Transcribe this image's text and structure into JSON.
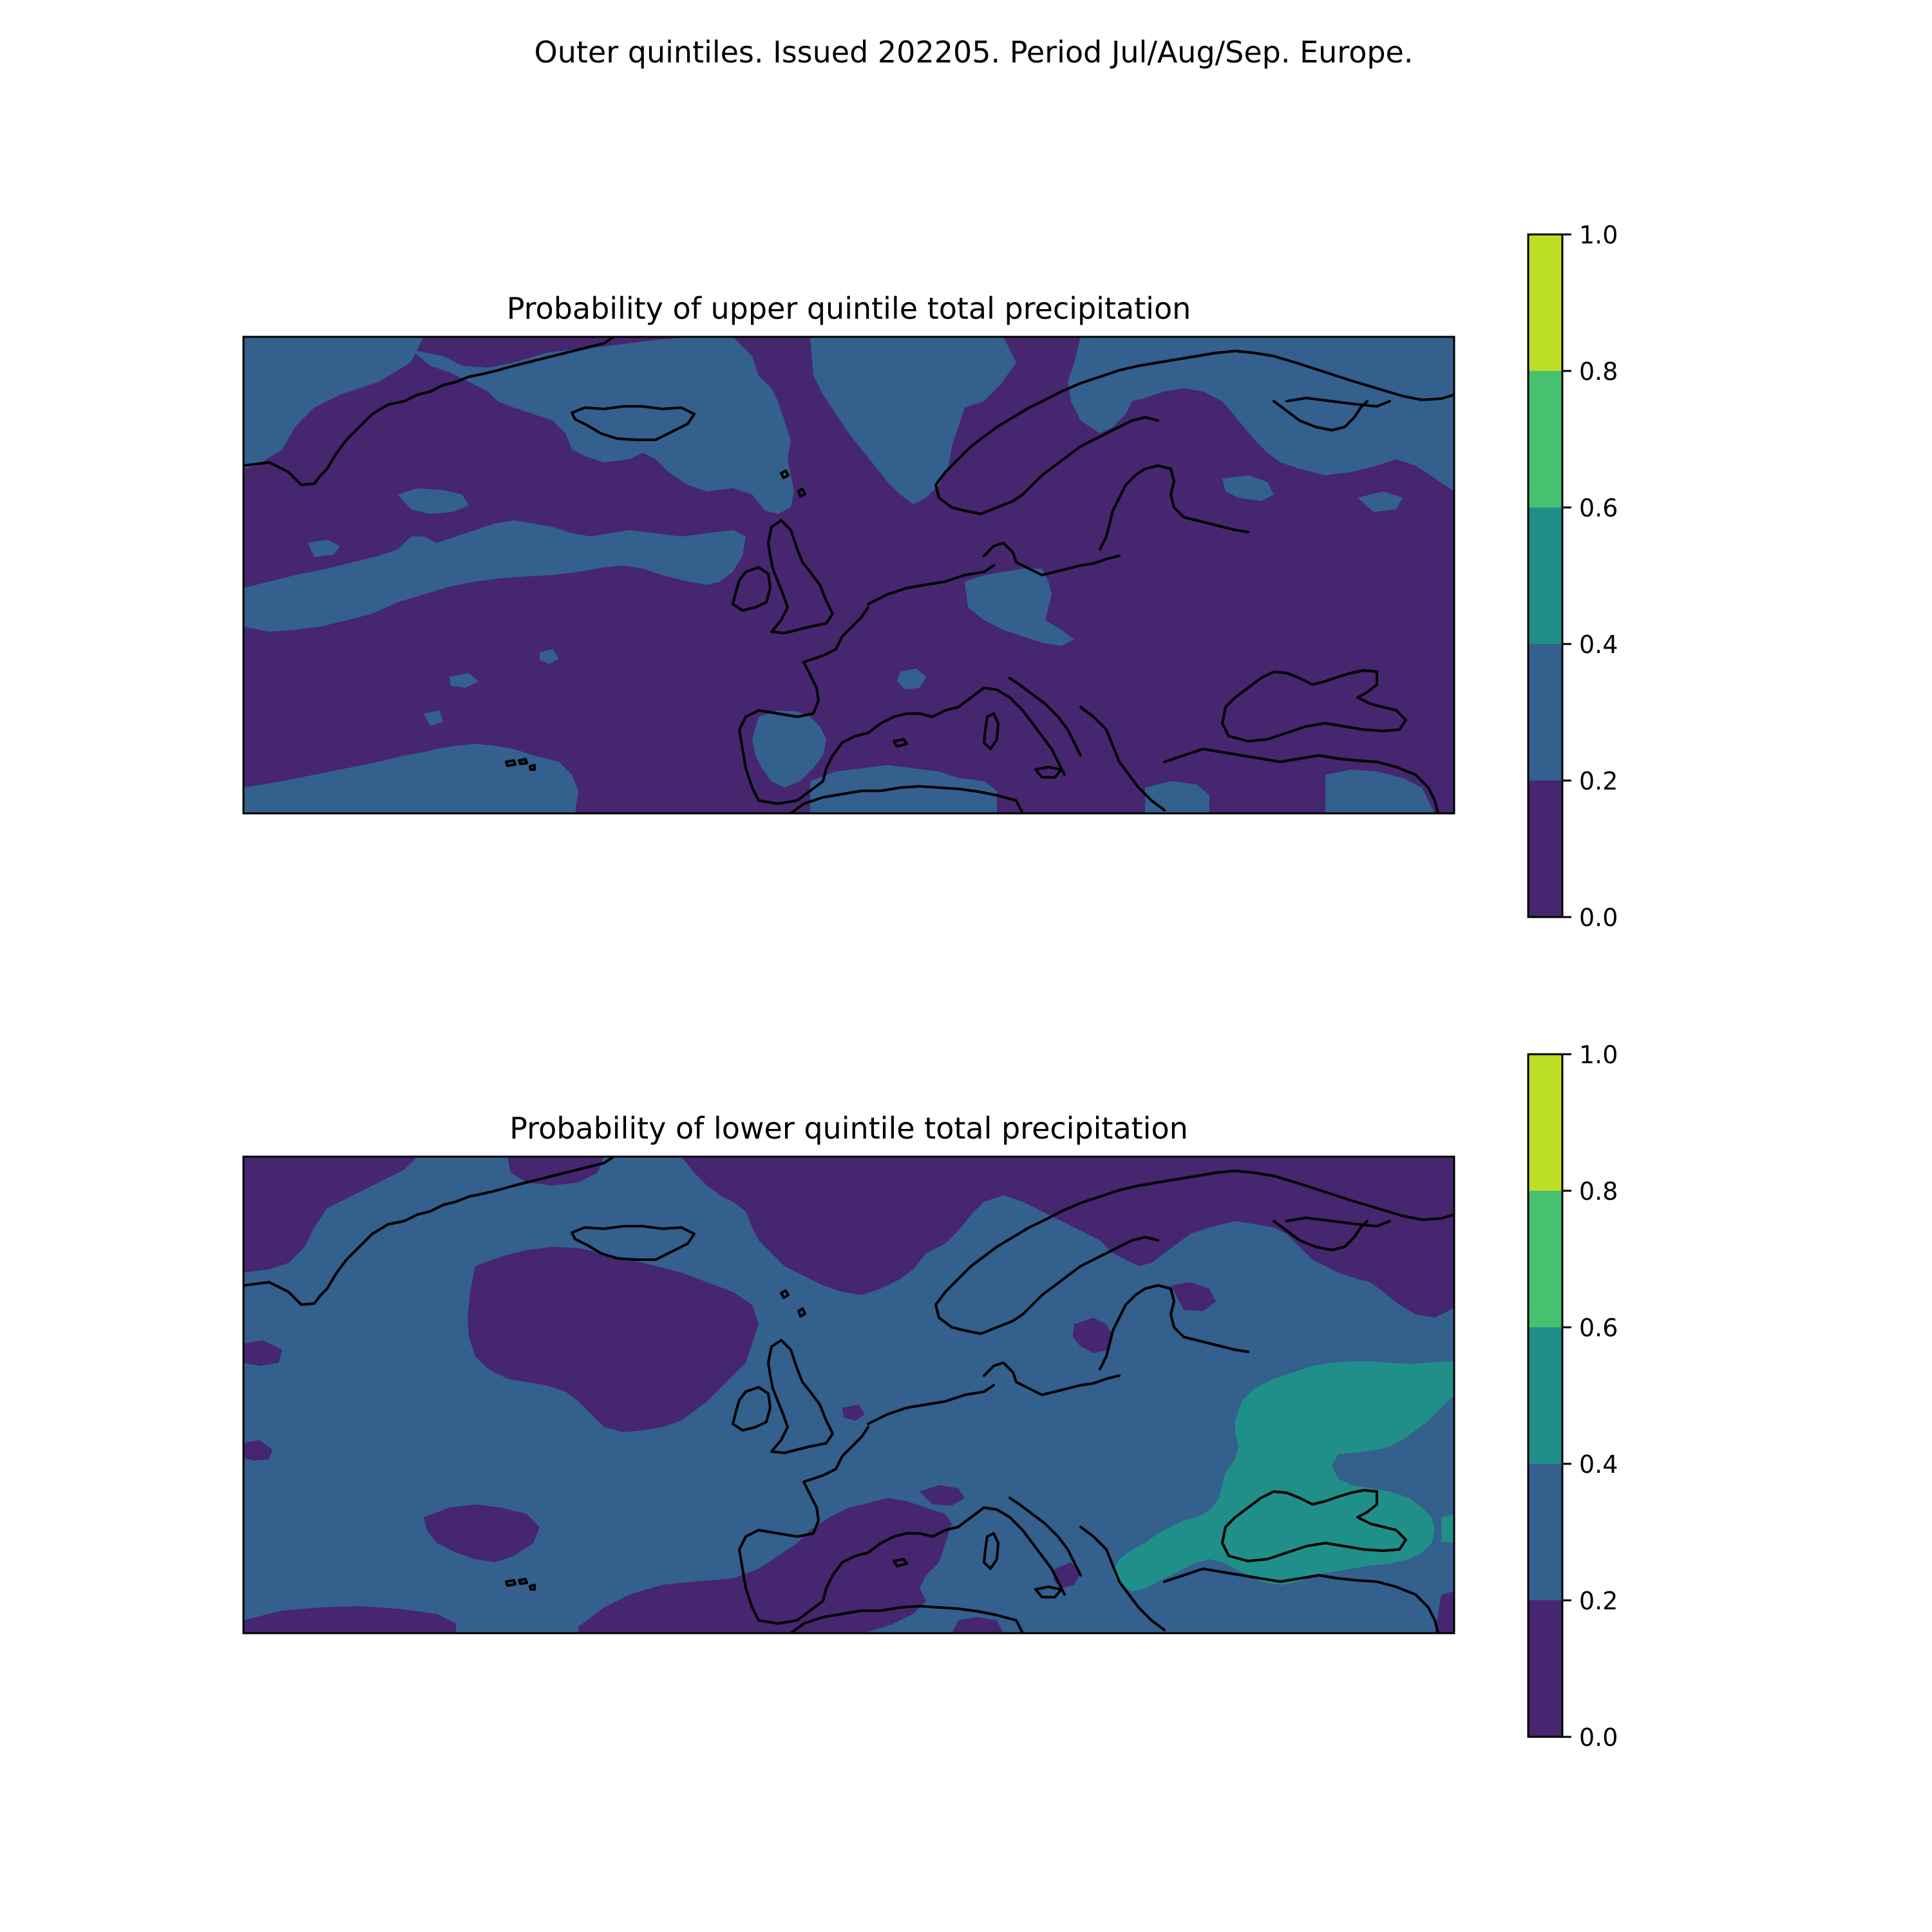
{
  "figure": {
    "suptitle": "Outer quintiles. Issued 202205. Period Jul/Aug/Sep. Europe."
  },
  "colors": {
    "band_0_0_2": "#46266f",
    "band_0_2_0_4": "#33608d",
    "band_0_4_0_6": "#208f8a",
    "band_0_6_0_8": "#47c06f",
    "band_0_8_1_0": "#bcdf26",
    "coastline": "#000000",
    "frame": "#000000"
  },
  "panels": [
    {
      "title": "Probability of upper quintile total precipitation",
      "dominant_band": "0.0-0.2",
      "colorbar": {
        "ticks": [
          "0.0",
          "0.2",
          "0.4",
          "0.6",
          "0.8",
          "1.0"
        ]
      }
    },
    {
      "title": "Probability of lower quintile total precipitation",
      "dominant_band": "0.2-0.4",
      "colorbar": {
        "ticks": [
          "0.0",
          "0.2",
          "0.4",
          "0.6",
          "0.8",
          "1.0"
        ]
      }
    }
  ],
  "chart_data": [
    {
      "type": "heatmap",
      "title": "Probability of upper quintile total precipitation",
      "levels": [
        0.0,
        0.2,
        0.4,
        0.6,
        0.8,
        1.0
      ],
      "colorbar_ticks": [
        0.0,
        0.2,
        0.4,
        0.6,
        0.8,
        1.0
      ],
      "regions": "Europe / North Atlantic; mostly 0.0-0.2 with 0.2-0.4 patches over Scandinavia, the north, the Atlantic and Iberia"
    },
    {
      "type": "heatmap",
      "title": "Probability of lower quintile total precipitation",
      "levels": [
        0.0,
        0.2,
        0.4,
        0.6,
        0.8,
        1.0
      ],
      "colorbar_ticks": [
        0.0,
        0.2,
        0.4,
        0.6,
        0.8,
        1.0
      ],
      "regions": "Europe / North Atlantic; mostly 0.2-0.4, with 0.0-0.2 over the mid Atlantic, the far north and the western Mediterranean, and 0.4-0.6 over the Black Sea / Balkans / Turkey"
    }
  ]
}
